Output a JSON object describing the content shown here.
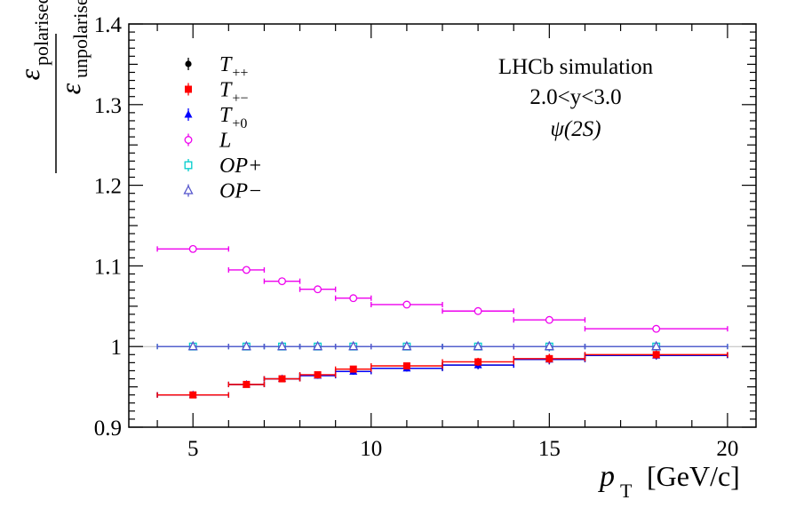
{
  "chart_data": {
    "type": "scatter",
    "title": "",
    "annotation": {
      "line1": "LHCb simulation",
      "line2": "2.0<y<3.0",
      "line3": "ψ(2S)"
    },
    "xlabel": {
      "main": "p",
      "sub": "T",
      "unit": "[GeV/c]"
    },
    "ylabel": {
      "num": "ε",
      "num_sub": "polarised",
      "den": "ε",
      "den_sub": "unpolarised"
    },
    "xlim": [
      3.2,
      20.8
    ],
    "ylim": [
      0.9,
      1.4
    ],
    "xticks": [
      5,
      10,
      15,
      20
    ],
    "xtick_labels": [
      "5",
      "10",
      "15",
      "20"
    ],
    "yticks": [
      0.9,
      1.0,
      1.1,
      1.2,
      1.3,
      1.4
    ],
    "ytick_labels": [
      "0.9",
      "1",
      "1.1",
      "1.2",
      "1.3",
      "1.4"
    ],
    "bins": [
      [
        4,
        6
      ],
      [
        6,
        7
      ],
      [
        7,
        8
      ],
      [
        8,
        9
      ],
      [
        9,
        10
      ],
      [
        10,
        12
      ],
      [
        12,
        14
      ],
      [
        14,
        16
      ],
      [
        16,
        20
      ]
    ],
    "x": [
      5,
      6.5,
      7.5,
      8.5,
      9.5,
      11,
      13,
      15,
      18
    ],
    "legend_position": "top-left",
    "series": [
      {
        "name": "T++",
        "label_main": "T",
        "label_sub": "++",
        "color": "#000000",
        "marker": "filled-circle",
        "values": [
          0.94,
          0.953,
          0.96,
          0.964,
          0.969,
          0.973,
          0.977,
          0.984,
          0.989
        ],
        "errors": [
          0.002,
          0.002,
          0.002,
          0.002,
          0.003,
          0.003,
          0.005,
          0.006,
          0.005
        ]
      },
      {
        "name": "T+-",
        "label_main": "T",
        "label_sub": "+−",
        "color": "#ff0000",
        "marker": "filled-square",
        "values": [
          0.94,
          0.953,
          0.96,
          0.965,
          0.972,
          0.976,
          0.981,
          0.985,
          0.99
        ],
        "errors": [
          0.002,
          0.002,
          0.002,
          0.002,
          0.003,
          0.003,
          0.005,
          0.006,
          0.005
        ]
      },
      {
        "name": "T+0",
        "label_main": "T",
        "label_sub": "+0",
        "color": "#0000ff",
        "marker": "filled-triangle",
        "values": [
          0.94,
          0.953,
          0.96,
          0.964,
          0.969,
          0.973,
          0.977,
          0.984,
          0.989
        ],
        "errors": [
          0.002,
          0.002,
          0.002,
          0.002,
          0.003,
          0.003,
          0.005,
          0.006,
          0.005
        ]
      },
      {
        "name": "L",
        "label_main": "L",
        "label_sub": "",
        "color": "#ee00ee",
        "marker": "open-circle",
        "values": [
          1.121,
          1.095,
          1.081,
          1.071,
          1.06,
          1.052,
          1.044,
          1.033,
          1.022
        ],
        "errors": [
          0.002,
          0.002,
          0.002,
          0.002,
          0.003,
          0.003,
          0.003,
          0.004,
          0.003
        ]
      },
      {
        "name": "OP+",
        "label_main": "OP+",
        "label_sub": "",
        "color": "#00cccc",
        "marker": "open-square",
        "values": [
          1.0,
          1.0,
          1.0,
          1.0,
          1.0,
          1.0,
          1.0,
          1.0,
          1.0
        ],
        "errors": [
          0.002,
          0.002,
          0.002,
          0.002,
          0.003,
          0.003,
          0.004,
          0.006,
          0.005
        ]
      },
      {
        "name": "OP-",
        "label_main": "OP−",
        "label_sub": "",
        "color": "#5555cc",
        "marker": "open-triangle",
        "values": [
          1.0,
          1.0,
          1.0,
          1.0,
          1.0,
          1.0,
          1.0,
          1.0,
          1.0
        ],
        "errors": [
          0.002,
          0.002,
          0.002,
          0.002,
          0.003,
          0.003,
          0.004,
          0.006,
          0.005
        ]
      }
    ]
  }
}
